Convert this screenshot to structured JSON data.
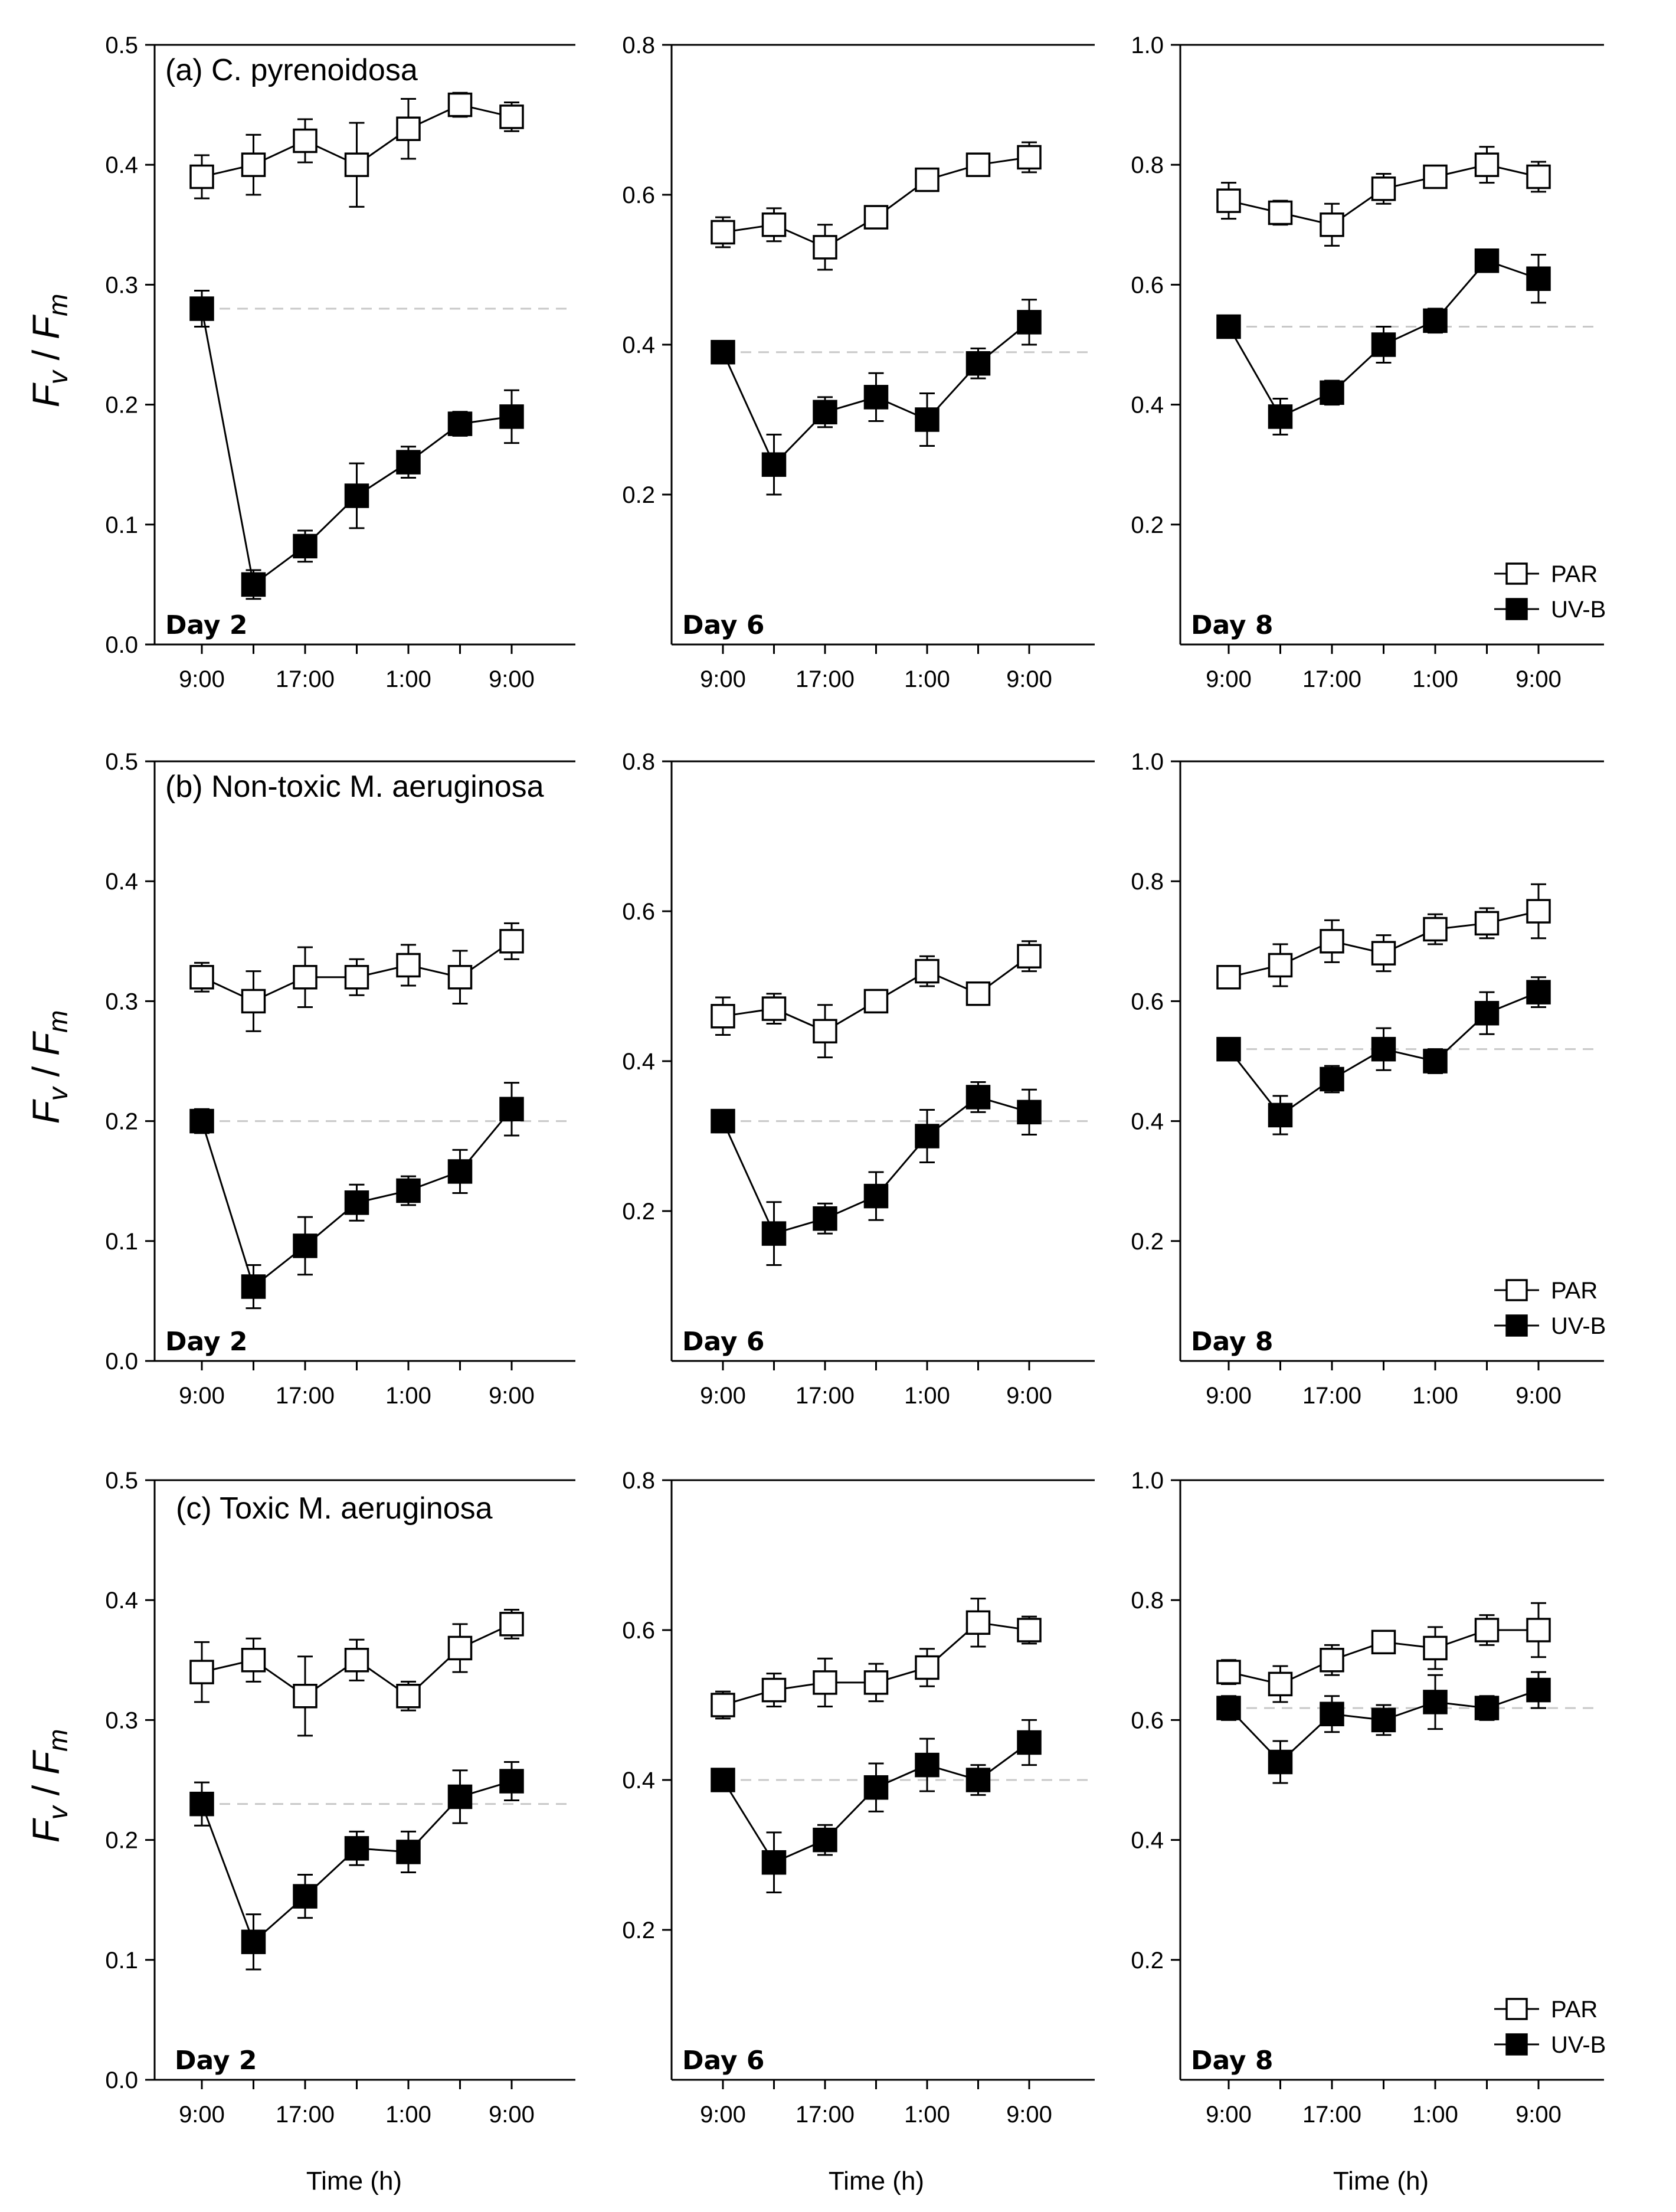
{
  "figure": {
    "x_axis_title": "Time (h)",
    "y_axis_title": {
      "main": "F",
      "v_sub": "v",
      "slash": " / ",
      "m_main": "F",
      "m_sub": "m"
    },
    "legend": {
      "par": "PAR",
      "uvb": "UV-B"
    }
  },
  "colors": {
    "axis": "#000000",
    "baseline": "#c8c8c8",
    "par_fill": "#ffffff",
    "uvb_fill": "#000000"
  },
  "chart_data": [
    {
      "type": "line",
      "row": "a",
      "title": "(a) C. pyrenoidosa",
      "day_label": "Day 2",
      "ylim": [
        0,
        0.5
      ],
      "yticks": [
        "0.0",
        "0.1",
        "0.2",
        "0.3",
        "0.4",
        "0.5"
      ],
      "xtick_labels": [
        "9:00",
        "17:00",
        "1:00",
        "9:00"
      ],
      "baseline": 0.28,
      "series": [
        {
          "name": "PAR",
          "values": [
            0.39,
            0.4,
            0.42,
            0.4,
            0.43,
            0.45,
            0.44
          ],
          "errors": [
            0.018,
            0.025,
            0.018,
            0.035,
            0.025,
            0.01,
            0.012
          ]
        },
        {
          "name": "UV-B",
          "values": [
            0.28,
            0.05,
            0.082,
            0.124,
            0.152,
            0.184,
            0.19
          ],
          "errors": [
            0.015,
            0.012,
            0.013,
            0.027,
            0.013,
            0.01,
            0.022
          ]
        }
      ]
    },
    {
      "type": "line",
      "row": "a",
      "title": "",
      "day_label": "Day 6",
      "ylim": [
        0,
        0.8
      ],
      "yticks": [
        "0.2",
        "0.4",
        "0.6",
        "0.8"
      ],
      "xtick_labels": [
        "9:00",
        "17:00",
        "1:00",
        "9:00"
      ],
      "baseline": 0.39,
      "series": [
        {
          "name": "PAR",
          "values": [
            0.55,
            0.56,
            0.53,
            0.57,
            0.62,
            0.64,
            0.65
          ],
          "errors": [
            0.02,
            0.022,
            0.03,
            0.006,
            0.015,
            0.012,
            0.02
          ]
        },
        {
          "name": "UV-B",
          "values": [
            0.39,
            0.24,
            0.31,
            0.33,
            0.3,
            0.375,
            0.43
          ],
          "errors": [
            0.015,
            0.04,
            0.02,
            0.032,
            0.035,
            0.02,
            0.03
          ]
        }
      ]
    },
    {
      "type": "line",
      "row": "a",
      "title": "",
      "day_label": "Day 8",
      "ylim": [
        0,
        1.0
      ],
      "yticks": [
        "0.2",
        "0.4",
        "0.6",
        "0.8",
        "1.0"
      ],
      "xtick_labels": [
        "9:00",
        "17:00",
        "1:00",
        "9:00"
      ],
      "baseline": 0.53,
      "legend": true,
      "series": [
        {
          "name": "PAR",
          "values": [
            0.74,
            0.72,
            0.7,
            0.76,
            0.78,
            0.8,
            0.78
          ],
          "errors": [
            0.03,
            0.02,
            0.035,
            0.025,
            0.015,
            0.03,
            0.025
          ]
        },
        {
          "name": "UV-B",
          "values": [
            0.53,
            0.38,
            0.42,
            0.5,
            0.54,
            0.64,
            0.61
          ],
          "errors": [
            0.01,
            0.03,
            0.02,
            0.03,
            0.02,
            0.015,
            0.04
          ]
        }
      ]
    },
    {
      "type": "line",
      "row": "b",
      "title": "(b) Non-toxic M. aeruginosa",
      "day_label": "Day 2",
      "ylim": [
        0,
        0.5
      ],
      "yticks": [
        "0.0",
        "0.1",
        "0.2",
        "0.3",
        "0.4",
        "0.5"
      ],
      "xtick_labels": [
        "9:00",
        "17:00",
        "1:00",
        "9:00"
      ],
      "baseline": 0.2,
      "series": [
        {
          "name": "PAR",
          "values": [
            0.32,
            0.3,
            0.32,
            0.32,
            0.33,
            0.32,
            0.35
          ],
          "errors": [
            0.012,
            0.025,
            0.025,
            0.015,
            0.017,
            0.022,
            0.015
          ]
        },
        {
          "name": "UV-B",
          "values": [
            0.2,
            0.062,
            0.096,
            0.132,
            0.142,
            0.158,
            0.21
          ],
          "errors": [
            0.01,
            0.018,
            0.024,
            0.015,
            0.012,
            0.018,
            0.022
          ]
        }
      ]
    },
    {
      "type": "line",
      "row": "b",
      "title": "",
      "day_label": "Day 6",
      "ylim": [
        0,
        0.8
      ],
      "yticks": [
        "0.2",
        "0.4",
        "0.6",
        "0.8"
      ],
      "xtick_labels": [
        "9:00",
        "17:00",
        "1:00",
        "9:00"
      ],
      "baseline": 0.32,
      "series": [
        {
          "name": "PAR",
          "values": [
            0.46,
            0.47,
            0.44,
            0.48,
            0.52,
            0.49,
            0.54
          ],
          "errors": [
            0.025,
            0.02,
            0.035,
            0.015,
            0.02,
            0.005,
            0.02
          ]
        },
        {
          "name": "UV-B",
          "values": [
            0.32,
            0.17,
            0.19,
            0.22,
            0.3,
            0.352,
            0.332
          ],
          "errors": [
            0.015,
            0.042,
            0.02,
            0.032,
            0.035,
            0.02,
            0.03
          ]
        }
      ]
    },
    {
      "type": "line",
      "row": "b",
      "title": "",
      "day_label": "Day 8",
      "ylim": [
        0,
        1.0
      ],
      "yticks": [
        "0.2",
        "0.4",
        "0.6",
        "0.8",
        "1.0"
      ],
      "xtick_labels": [
        "9:00",
        "17:00",
        "1:00",
        "9:00"
      ],
      "baseline": 0.52,
      "legend": true,
      "series": [
        {
          "name": "PAR",
          "values": [
            0.64,
            0.66,
            0.7,
            0.68,
            0.72,
            0.73,
            0.75
          ],
          "errors": [
            0.017,
            0.035,
            0.035,
            0.03,
            0.025,
            0.025,
            0.045
          ]
        },
        {
          "name": "UV-B",
          "values": [
            0.52,
            0.41,
            0.47,
            0.52,
            0.5,
            0.58,
            0.615
          ],
          "errors": [
            0.015,
            0.032,
            0.022,
            0.035,
            0.02,
            0.035,
            0.025
          ]
        }
      ]
    },
    {
      "type": "line",
      "row": "c",
      "title": "(c) Toxic M. aeruginosa",
      "day_label": "Day 2",
      "ylim": [
        0,
        0.5
      ],
      "yticks": [
        "0.0",
        "0.1",
        "0.2",
        "0.3",
        "0.4",
        "0.5"
      ],
      "xtick_labels": [
        "9:00",
        "17:00",
        "1:00",
        "9:00"
      ],
      "baseline": 0.23,
      "series": [
        {
          "name": "PAR",
          "values": [
            0.34,
            0.35,
            0.32,
            0.35,
            0.32,
            0.36,
            0.38
          ],
          "errors": [
            0.025,
            0.018,
            0.033,
            0.017,
            0.012,
            0.02,
            0.012
          ]
        },
        {
          "name": "UV-B",
          "values": [
            0.23,
            0.115,
            0.153,
            0.193,
            0.19,
            0.236,
            0.249
          ],
          "errors": [
            0.018,
            0.023,
            0.018,
            0.014,
            0.017,
            0.022,
            0.016
          ]
        }
      ]
    },
    {
      "type": "line",
      "row": "c",
      "title": "",
      "day_label": "Day 6",
      "ylim": [
        0,
        0.8
      ],
      "yticks": [
        "0.2",
        "0.4",
        "0.6",
        "0.8"
      ],
      "xtick_labels": [
        "9:00",
        "17:00",
        "1:00",
        "9:00"
      ],
      "baseline": 0.4,
      "series": [
        {
          "name": "PAR",
          "values": [
            0.5,
            0.52,
            0.53,
            0.53,
            0.55,
            0.61,
            0.6
          ],
          "errors": [
            0.018,
            0.022,
            0.032,
            0.025,
            0.025,
            0.032,
            0.018
          ]
        },
        {
          "name": "UV-B",
          "values": [
            0.4,
            0.29,
            0.32,
            0.39,
            0.42,
            0.4,
            0.45
          ],
          "errors": [
            0.015,
            0.04,
            0.02,
            0.032,
            0.035,
            0.02,
            0.03
          ]
        }
      ]
    },
    {
      "type": "line",
      "row": "c",
      "title": "",
      "day_label": "Day 8",
      "ylim": [
        0,
        1.0
      ],
      "yticks": [
        "0.2",
        "0.4",
        "0.6",
        "0.8",
        "1.0"
      ],
      "xtick_labels": [
        "9:00",
        "17:00",
        "1:00",
        "9:00"
      ],
      "baseline": 0.62,
      "legend": true,
      "series": [
        {
          "name": "PAR",
          "values": [
            0.68,
            0.66,
            0.7,
            0.73,
            0.72,
            0.75,
            0.75
          ],
          "errors": [
            0.02,
            0.03,
            0.025,
            0.015,
            0.035,
            0.025,
            0.045
          ]
        },
        {
          "name": "UV-B",
          "values": [
            0.62,
            0.53,
            0.61,
            0.6,
            0.63,
            0.62,
            0.65
          ],
          "errors": [
            0.02,
            0.035,
            0.03,
            0.025,
            0.045,
            0.02,
            0.03
          ]
        }
      ]
    }
  ]
}
